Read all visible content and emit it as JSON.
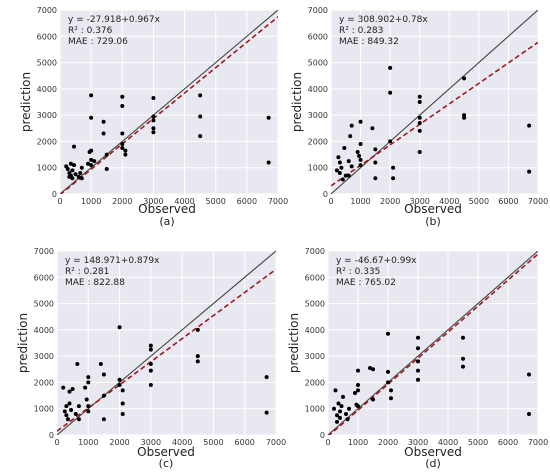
{
  "colors": {
    "background": "#e8e8f0",
    "grid": "#ffffff",
    "points": "#000000",
    "identity_line": "#444444",
    "fit_line": "#a0191e"
  },
  "chart_data": [
    {
      "panel": "(a)",
      "type": "scatter",
      "xlabel": "Observed",
      "ylabel": "prediction",
      "xlim": [
        0,
        7000
      ],
      "ylim": [
        0,
        7000
      ],
      "xticks": [
        "0",
        "1000",
        "2000",
        "3000",
        "4000",
        "5000",
        "6000",
        "7000"
      ],
      "yticks": [
        "0",
        "1000",
        "2000",
        "3000",
        "4000",
        "5000",
        "6000",
        "7000"
      ],
      "grid": true,
      "annotation": [
        "y = -27.918+0.967x",
        "R² : 0.376",
        "MAE : 729.06"
      ],
      "fit": {
        "intercept": -27.918,
        "slope": 0.967
      },
      "points": [
        [
          200,
          1050
        ],
        [
          250,
          950
        ],
        [
          300,
          800
        ],
        [
          300,
          650
        ],
        [
          350,
          1150
        ],
        [
          350,
          700
        ],
        [
          400,
          600
        ],
        [
          400,
          900
        ],
        [
          450,
          1800
        ],
        [
          450,
          1100
        ],
        [
          500,
          750
        ],
        [
          600,
          650
        ],
        [
          650,
          800
        ],
        [
          700,
          600
        ],
        [
          700,
          1000
        ],
        [
          900,
          1150
        ],
        [
          950,
          1600
        ],
        [
          1000,
          3750
        ],
        [
          1000,
          2900
        ],
        [
          1000,
          1650
        ],
        [
          1000,
          1300
        ],
        [
          1000,
          1100
        ],
        [
          1100,
          1250
        ],
        [
          1400,
          2750
        ],
        [
          1400,
          2300
        ],
        [
          1500,
          1500
        ],
        [
          1500,
          950
        ],
        [
          2000,
          3700
        ],
        [
          2000,
          3350
        ],
        [
          2000,
          2300
        ],
        [
          2000,
          1900
        ],
        [
          2000,
          1750
        ],
        [
          2100,
          1500
        ],
        [
          2100,
          1650
        ],
        [
          3000,
          3650
        ],
        [
          3000,
          2950
        ],
        [
          3000,
          2800
        ],
        [
          3000,
          2500
        ],
        [
          3000,
          2350
        ],
        [
          4500,
          3750
        ],
        [
          4500,
          2950
        ],
        [
          4500,
          2200
        ],
        [
          6700,
          2900
        ],
        [
          6700,
          1200
        ]
      ]
    },
    {
      "panel": "(b)",
      "type": "scatter",
      "xlabel": "Observed",
      "ylabel": "prediction",
      "xlim": [
        0,
        7000
      ],
      "ylim": [
        0,
        7000
      ],
      "xticks": [
        "0",
        "1000",
        "2000",
        "3000",
        "4000",
        "5000",
        "6000",
        "7000"
      ],
      "yticks": [
        "0",
        "1000",
        "2000",
        "3000",
        "4000",
        "5000",
        "6000",
        "7000"
      ],
      "grid": true,
      "annotation": [
        "y = 308.902+0.78x",
        "R² : 0.283",
        "MAE : 849.32"
      ],
      "fit": {
        "intercept": 308.902,
        "slope": 0.78
      },
      "points": [
        [
          200,
          900
        ],
        [
          250,
          1400
        ],
        [
          300,
          1200
        ],
        [
          300,
          800
        ],
        [
          350,
          1000
        ],
        [
          400,
          550
        ],
        [
          450,
          1750
        ],
        [
          500,
          700
        ],
        [
          600,
          1250
        ],
        [
          600,
          700
        ],
        [
          650,
          2200
        ],
        [
          700,
          2600
        ],
        [
          700,
          1050
        ],
        [
          900,
          1600
        ],
        [
          950,
          1450
        ],
        [
          1000,
          2750
        ],
        [
          1000,
          1900
        ],
        [
          1000,
          1300
        ],
        [
          1000,
          1100
        ],
        [
          1400,
          2500
        ],
        [
          1500,
          1700
        ],
        [
          1500,
          1200
        ],
        [
          1500,
          600
        ],
        [
          2000,
          4800
        ],
        [
          2000,
          3850
        ],
        [
          2000,
          2000
        ],
        [
          2100,
          1000
        ],
        [
          2100,
          600
        ],
        [
          3000,
          3700
        ],
        [
          3000,
          3500
        ],
        [
          3000,
          2900
        ],
        [
          3000,
          2700
        ],
        [
          3000,
          2400
        ],
        [
          3000,
          1600
        ],
        [
          4500,
          4400
        ],
        [
          4500,
          3000
        ],
        [
          4500,
          2900
        ],
        [
          6700,
          2600
        ],
        [
          6700,
          850
        ]
      ]
    },
    {
      "panel": "(c)",
      "type": "scatter",
      "xlabel": "Observed",
      "ylabel": "prediction",
      "xlim": [
        0,
        7000
      ],
      "ylim": [
        0,
        7000
      ],
      "xticks": [
        "0",
        "1000",
        "2000",
        "3000",
        "4000",
        "5000",
        "6000",
        "7000"
      ],
      "yticks": [
        "0",
        "1000",
        "2000",
        "3000",
        "4000",
        "5000",
        "6000",
        "7000"
      ],
      "grid": true,
      "annotation": [
        "y = 148.971+0.879x",
        "R² : 0.281",
        "MAE : 822.88"
      ],
      "fit": {
        "intercept": 148.971,
        "slope": 0.879
      },
      "points": [
        [
          200,
          1800
        ],
        [
          250,
          900
        ],
        [
          300,
          750
        ],
        [
          300,
          1100
        ],
        [
          350,
          600
        ],
        [
          400,
          1200
        ],
        [
          400,
          1650
        ],
        [
          450,
          950
        ],
        [
          500,
          1750
        ],
        [
          600,
          800
        ],
        [
          650,
          2700
        ],
        [
          700,
          1100
        ],
        [
          700,
          600
        ],
        [
          900,
          1800
        ],
        [
          950,
          1350
        ],
        [
          1000,
          2200
        ],
        [
          1000,
          2000
        ],
        [
          1000,
          1100
        ],
        [
          1000,
          900
        ],
        [
          1400,
          2700
        ],
        [
          1500,
          2300
        ],
        [
          1500,
          1500
        ],
        [
          1500,
          600
        ],
        [
          2000,
          4100
        ],
        [
          2000,
          2100
        ],
        [
          2000,
          1900
        ],
        [
          2100,
          1700
        ],
        [
          2100,
          1200
        ],
        [
          2100,
          800
        ],
        [
          3000,
          3400
        ],
        [
          3000,
          3250
        ],
        [
          3000,
          2700
        ],
        [
          3000,
          2450
        ],
        [
          3000,
          1900
        ],
        [
          4500,
          4000
        ],
        [
          4500,
          3000
        ],
        [
          4500,
          2800
        ],
        [
          6700,
          2200
        ],
        [
          6700,
          850
        ]
      ]
    },
    {
      "panel": "(d)",
      "type": "scatter",
      "xlabel": "Observed",
      "ylabel": "prediction",
      "xlim": [
        0,
        7000
      ],
      "ylim": [
        0,
        7000
      ],
      "xticks": [
        "0",
        "1000",
        "2000",
        "3000",
        "4000",
        "5000",
        "6000",
        "7000"
      ],
      "yticks": [
        "0",
        "1000",
        "2000",
        "3000",
        "4000",
        "5000",
        "6000",
        "7000"
      ],
      "grid": true,
      "annotation": [
        "y = -46.67+0.99x",
        "R² : 0.335",
        "MAE : 765.02"
      ],
      "fit": {
        "intercept": -46.67,
        "slope": 0.99
      },
      "points": [
        [
          200,
          1000
        ],
        [
          250,
          1700
        ],
        [
          300,
          750
        ],
        [
          300,
          500
        ],
        [
          350,
          1200
        ],
        [
          400,
          900
        ],
        [
          400,
          650
        ],
        [
          450,
          1100
        ],
        [
          500,
          1450
        ],
        [
          600,
          800
        ],
        [
          650,
          600
        ],
        [
          700,
          1000
        ],
        [
          900,
          1600
        ],
        [
          950,
          1150
        ],
        [
          1000,
          2450
        ],
        [
          1000,
          1900
        ],
        [
          1000,
          1700
        ],
        [
          1000,
          1100
        ],
        [
          1400,
          2550
        ],
        [
          1500,
          2500
        ],
        [
          1500,
          1350
        ],
        [
          2000,
          3850
        ],
        [
          2000,
          2400
        ],
        [
          2000,
          2000
        ],
        [
          2100,
          1700
        ],
        [
          2100,
          1400
        ],
        [
          3000,
          3700
        ],
        [
          3000,
          3300
        ],
        [
          3000,
          2800
        ],
        [
          3000,
          2450
        ],
        [
          3000,
          2100
        ],
        [
          4500,
          3700
        ],
        [
          4500,
          2900
        ],
        [
          4500,
          2600
        ],
        [
          6700,
          2300
        ],
        [
          6700,
          800
        ]
      ]
    }
  ]
}
